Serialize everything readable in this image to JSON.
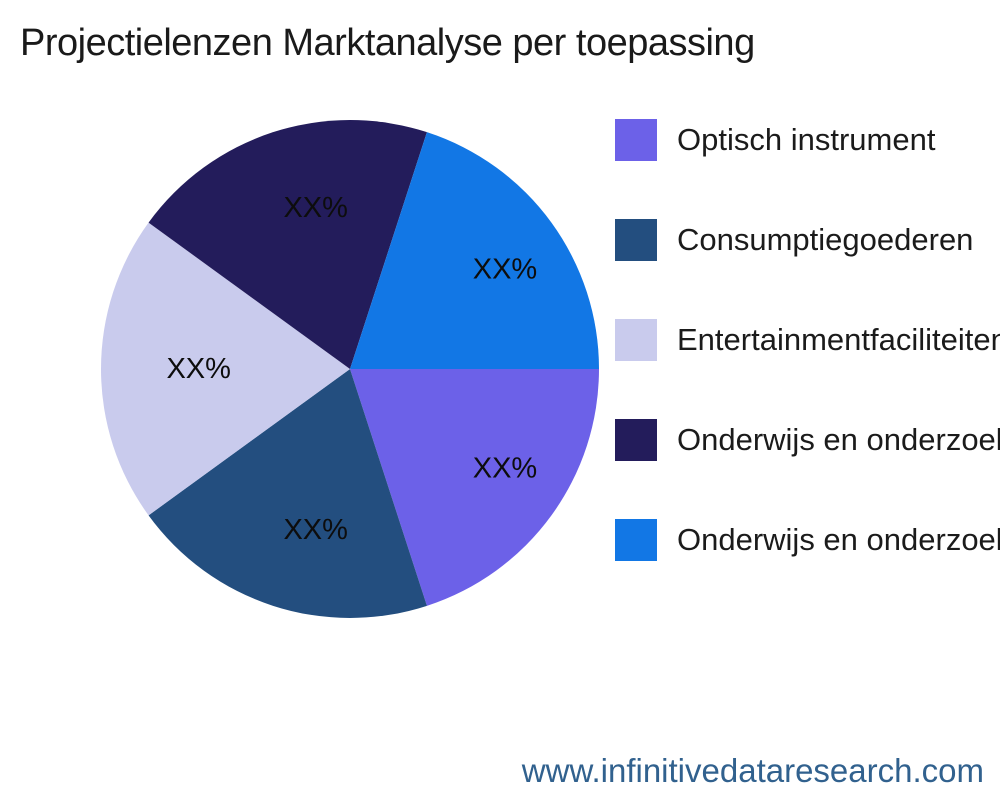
{
  "title": "Projectielenzen Marktanalyse per toepassing",
  "footer": {
    "url": "www.infinitivedataresearch.com"
  },
  "chart_data": {
    "type": "pie",
    "title": "Projectielenzen Marktanalyse per toepassing",
    "start_angle_deg": 0,
    "direction": "clockwise",
    "legend_position": "right",
    "slice_label_format": "XX%",
    "slices": [
      {
        "label": "Optisch instrument",
        "value": 20,
        "display_pct": "XX%",
        "color": "#6C61E8"
      },
      {
        "label": "Consumptiegoederen",
        "value": 20,
        "display_pct": "XX%",
        "color": "#234E7F"
      },
      {
        "label": "Entertainmentfaciliteiten",
        "value": 20,
        "display_pct": "XX%",
        "color": "#C9CBED"
      },
      {
        "label": "Onderwijs en onderzoek",
        "value": 20,
        "display_pct": "XX%",
        "color": "#231C5B"
      },
      {
        "label": "Onderwijs en onderzoek",
        "value": 20,
        "display_pct": "XX%",
        "color": "#1277E5"
      }
    ]
  }
}
